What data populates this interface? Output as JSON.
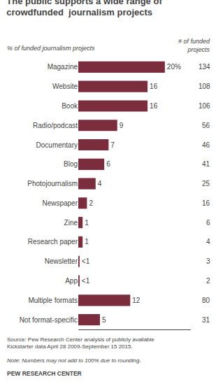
{
  "chart_data": {
    "type": "bar",
    "orientation": "horizontal",
    "title": "The public supports a wide range of\ncrowdfunded  journalism projects",
    "categories": [
      "Magazine",
      "Website",
      "Book",
      "Radio/podcast",
      "Documentary",
      "Blog",
      "Photojournalism",
      "Newspaper",
      "Zine",
      "Research paper",
      "Newsletter",
      "App",
      "Multiple formats",
      "Not format-specific"
    ],
    "values": [
      20,
      16,
      16,
      9,
      7,
      6,
      4,
      2,
      1,
      1,
      0.3,
      0.3,
      12,
      5
    ],
    "value_labels": [
      "20%",
      "16",
      "16",
      "9",
      "7",
      "6",
      "4",
      "2",
      "1",
      "1",
      "<1",
      "<1",
      "12",
      "5"
    ],
    "data_labels": true,
    "counts": [
      134,
      108,
      106,
      56,
      46,
      41,
      25,
      16,
      6,
      4,
      3,
      2,
      80,
      31
    ],
    "color": "#7b2d3e",
    "xlim": [
      0,
      26
    ],
    "grid": false,
    "tick_labels": "y",
    "annotations": [
      "% of funded journalism projects",
      "# of funded\nprojects",
      "Source: Pew Research Center analysis of publicly available\nKickstarter data April 28 2009-September 15 2015.",
      "Note: Numbers may not add to 100% due to rounding.",
      "PEW RESEARCH CENTER"
    ]
  }
}
